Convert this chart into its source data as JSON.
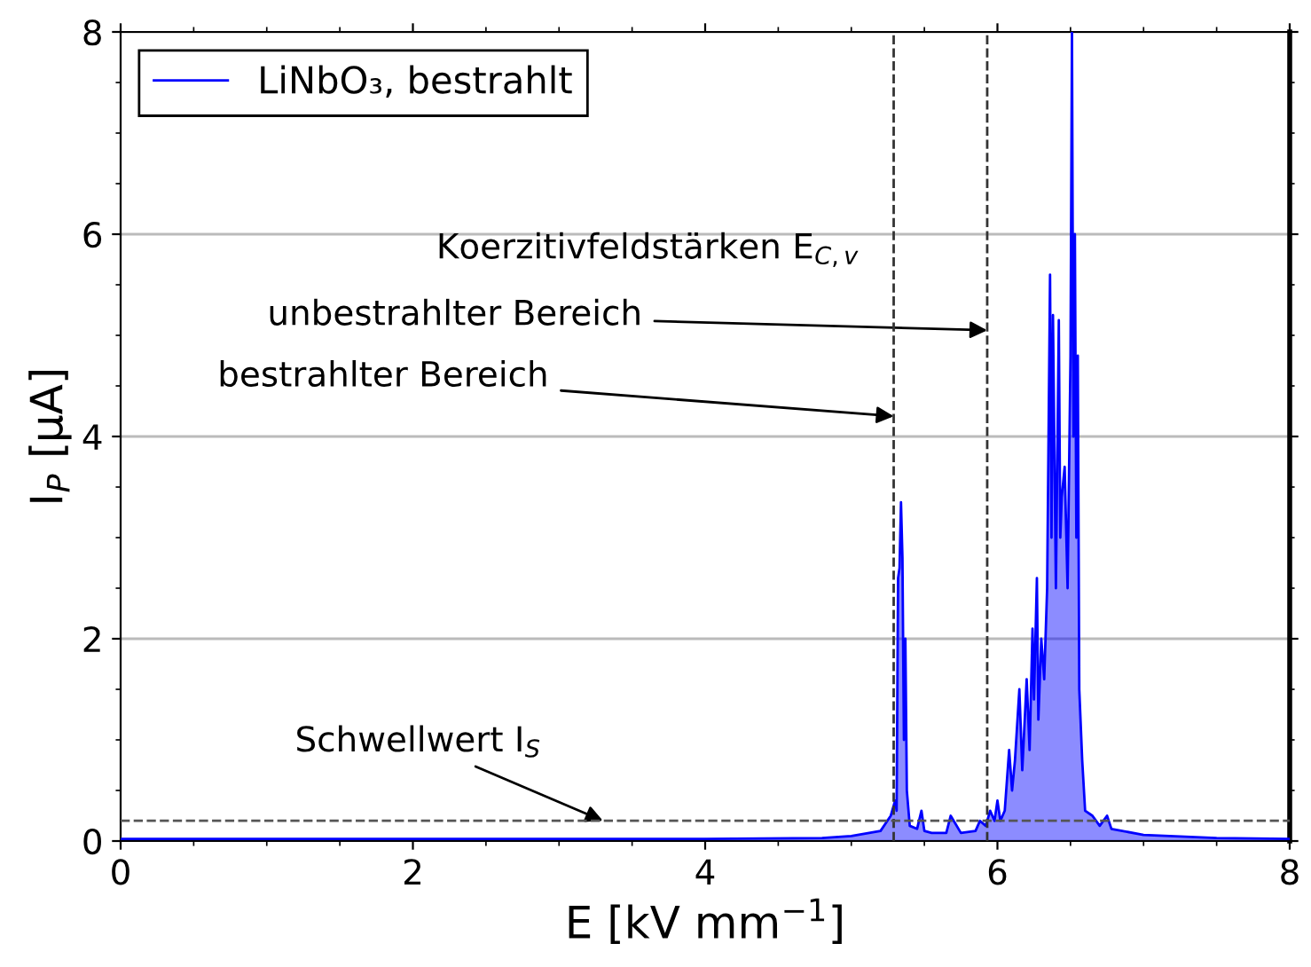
{
  "chart_data": {
    "type": "area",
    "xlabel": "E [kV mm$^{−1}$]",
    "ylabel": "I$_{P}$ [µA]",
    "xlim": [
      0,
      8
    ],
    "ylim": [
      0,
      8
    ],
    "xticks": [
      0,
      2,
      4,
      6,
      8
    ],
    "yticks": [
      0,
      2,
      4,
      6,
      8
    ],
    "grid": "y",
    "legend": "top left",
    "x": [
      0,
      2,
      4,
      4.8,
      5.0,
      5.2,
      5.27,
      5.3,
      5.31,
      5.32,
      5.33,
      5.34,
      5.35,
      5.36,
      5.37,
      5.38,
      5.4,
      5.45,
      5.48,
      5.5,
      5.55,
      5.65,
      5.68,
      5.75,
      5.85,
      5.88,
      5.92,
      5.95,
      5.98,
      6.0,
      6.02,
      6.05,
      6.08,
      6.1,
      6.12,
      6.15,
      6.17,
      6.2,
      6.22,
      6.24,
      6.25,
      6.27,
      6.28,
      6.3,
      6.32,
      6.34,
      6.36,
      6.37,
      6.38,
      6.4,
      6.42,
      6.43,
      6.44,
      6.46,
      6.48,
      6.5,
      6.51,
      6.52,
      6.53,
      6.54,
      6.55,
      6.56,
      6.58,
      6.6,
      6.65,
      6.7,
      6.75,
      6.78,
      7.0,
      7.5,
      8.0
    ],
    "series": [
      {
        "name": "LiNbO₃, bestrahlt",
        "color": "#0000ff",
        "values": [
          0.02,
          0.02,
          0.02,
          0.03,
          0.05,
          0.1,
          0.25,
          0.4,
          0.3,
          2.6,
          2.7,
          3.35,
          2.8,
          1.0,
          2.0,
          0.5,
          0.15,
          0.12,
          0.3,
          0.1,
          0.08,
          0.08,
          0.25,
          0.08,
          0.1,
          0.2,
          0.15,
          0.3,
          0.2,
          0.4,
          0.2,
          0.3,
          0.9,
          0.5,
          0.8,
          1.5,
          0.7,
          1.6,
          0.9,
          2.1,
          1.4,
          2.6,
          1.2,
          2.0,
          1.6,
          2.5,
          5.6,
          3.0,
          5.2,
          2.5,
          5.15,
          3.0,
          3.4,
          3.7,
          2.5,
          4.8,
          8.0,
          4.0,
          6.0,
          3.0,
          4.8,
          1.5,
          0.8,
          0.3,
          0.25,
          0.15,
          0.25,
          0.12,
          0.06,
          0.03,
          0.02
        ]
      }
    ],
    "ref_lines": [
      {
        "axis": "x",
        "value": 5.29,
        "color": "#333333",
        "line_style": "dashed"
      },
      {
        "axis": "x",
        "value": 5.93,
        "color": "#333333",
        "line_style": "dashed"
      },
      {
        "axis": "y",
        "value": 0.2,
        "color": "#555555",
        "line_style": "dashed"
      }
    ],
    "annotations": [
      "Koerzitivfeldstärken E$_{C,v}$",
      {
        "text": "unbestrahlter Bereich",
        "x": 5.93,
        "y": 5.05
      },
      {
        "text": "bestrahlter Bereich",
        "x": 5.29,
        "y": 4.2
      },
      {
        "text": "Schwellwert I$_{S}$",
        "x": 3.3,
        "y": 0.2
      }
    ]
  }
}
